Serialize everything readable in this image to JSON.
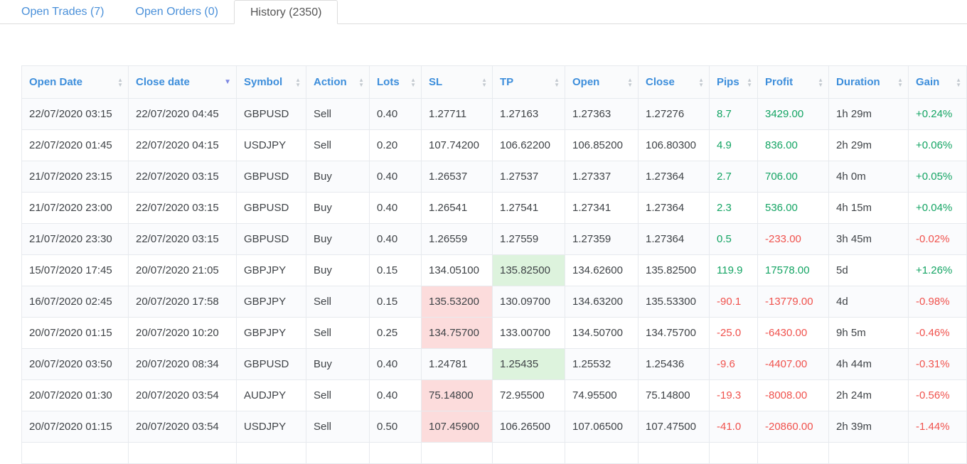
{
  "tabs": [
    {
      "id": "open-trades",
      "label": "Open Trades (7)",
      "active": false
    },
    {
      "id": "open-orders",
      "label": "Open Orders (0)",
      "active": false
    },
    {
      "id": "history",
      "label": "History (2350)",
      "active": true
    }
  ],
  "colors": {
    "positive": "#13a463",
    "negative": "#f0524d",
    "sl_hit_bg": "#fcdcdc",
    "tp_hit_bg": "#ddf3dd",
    "header_text": "#3d8edb",
    "tab_link": "#4a90d9",
    "active_sort_arrow": "#7d88e2"
  },
  "table": {
    "columns": [
      {
        "key": "open_date",
        "label": "Open Date",
        "sort": "none"
      },
      {
        "key": "close_date",
        "label": "Close date",
        "sort": "desc"
      },
      {
        "key": "symbol",
        "label": "Symbol",
        "sort": "none"
      },
      {
        "key": "action",
        "label": "Action",
        "sort": "none"
      },
      {
        "key": "lots",
        "label": "Lots",
        "sort": "none"
      },
      {
        "key": "sl",
        "label": "SL",
        "sort": "none"
      },
      {
        "key": "tp",
        "label": "TP",
        "sort": "none"
      },
      {
        "key": "open",
        "label": "Open",
        "sort": "none"
      },
      {
        "key": "close",
        "label": "Close",
        "sort": "none"
      },
      {
        "key": "pips",
        "label": "Pips",
        "sort": "none"
      },
      {
        "key": "profit",
        "label": "Profit",
        "sort": "none"
      },
      {
        "key": "duration",
        "label": "Duration",
        "sort": "none"
      },
      {
        "key": "gain",
        "label": "Gain",
        "sort": "none"
      }
    ],
    "rows": [
      {
        "open_date": "22/07/2020 03:15",
        "close_date": "22/07/2020 04:45",
        "symbol": "GBPUSD",
        "action": "Sell",
        "lots": "0.40",
        "sl": "1.27711",
        "sl_hit": false,
        "tp": "1.27163",
        "tp_hit": false,
        "open": "1.27363",
        "close": "1.27276",
        "pips": "8.7",
        "profit": "3429.00",
        "duration": "1h 29m",
        "gain": "+0.24%"
      },
      {
        "open_date": "22/07/2020 01:45",
        "close_date": "22/07/2020 04:15",
        "symbol": "USDJPY",
        "action": "Sell",
        "lots": "0.20",
        "sl": "107.74200",
        "sl_hit": false,
        "tp": "106.62200",
        "tp_hit": false,
        "open": "106.85200",
        "close": "106.80300",
        "pips": "4.9",
        "profit": "836.00",
        "duration": "2h 29m",
        "gain": "+0.06%"
      },
      {
        "open_date": "21/07/2020 23:15",
        "close_date": "22/07/2020 03:15",
        "symbol": "GBPUSD",
        "action": "Buy",
        "lots": "0.40",
        "sl": "1.26537",
        "sl_hit": false,
        "tp": "1.27537",
        "tp_hit": false,
        "open": "1.27337",
        "close": "1.27364",
        "pips": "2.7",
        "profit": "706.00",
        "duration": "4h 0m",
        "gain": "+0.05%"
      },
      {
        "open_date": "21/07/2020 23:00",
        "close_date": "22/07/2020 03:15",
        "symbol": "GBPUSD",
        "action": "Buy",
        "lots": "0.40",
        "sl": "1.26541",
        "sl_hit": false,
        "tp": "1.27541",
        "tp_hit": false,
        "open": "1.27341",
        "close": "1.27364",
        "pips": "2.3",
        "profit": "536.00",
        "duration": "4h 15m",
        "gain": "+0.04%"
      },
      {
        "open_date": "21/07/2020 23:30",
        "close_date": "22/07/2020 03:15",
        "symbol": "GBPUSD",
        "action": "Buy",
        "lots": "0.40",
        "sl": "1.26559",
        "sl_hit": false,
        "tp": "1.27559",
        "tp_hit": false,
        "open": "1.27359",
        "close": "1.27364",
        "pips": "0.5",
        "profit": "-233.00",
        "duration": "3h 45m",
        "gain": "-0.02%"
      },
      {
        "open_date": "15/07/2020 17:45",
        "close_date": "20/07/2020 21:05",
        "symbol": "GBPJPY",
        "action": "Buy",
        "lots": "0.15",
        "sl": "134.05100",
        "sl_hit": false,
        "tp": "135.82500",
        "tp_hit": true,
        "open": "134.62600",
        "close": "135.82500",
        "pips": "119.9",
        "profit": "17578.00",
        "duration": "5d",
        "gain": "+1.26%"
      },
      {
        "open_date": "16/07/2020 02:45",
        "close_date": "20/07/2020 17:58",
        "symbol": "GBPJPY",
        "action": "Sell",
        "lots": "0.15",
        "sl": "135.53200",
        "sl_hit": true,
        "tp": "130.09700",
        "tp_hit": false,
        "open": "134.63200",
        "close": "135.53300",
        "pips": "-90.1",
        "profit": "-13779.00",
        "duration": "4d",
        "gain": "-0.98%"
      },
      {
        "open_date": "20/07/2020 01:15",
        "close_date": "20/07/2020 10:20",
        "symbol": "GBPJPY",
        "action": "Sell",
        "lots": "0.25",
        "sl": "134.75700",
        "sl_hit": true,
        "tp": "133.00700",
        "tp_hit": false,
        "open": "134.50700",
        "close": "134.75700",
        "pips": "-25.0",
        "profit": "-6430.00",
        "duration": "9h 5m",
        "gain": "-0.46%"
      },
      {
        "open_date": "20/07/2020 03:50",
        "close_date": "20/07/2020 08:34",
        "symbol": "GBPUSD",
        "action": "Buy",
        "lots": "0.40",
        "sl": "1.24781",
        "sl_hit": false,
        "tp": "1.25435",
        "tp_hit": true,
        "open": "1.25532",
        "close": "1.25436",
        "pips": "-9.6",
        "profit": "-4407.00",
        "duration": "4h 44m",
        "gain": "-0.31%"
      },
      {
        "open_date": "20/07/2020 01:30",
        "close_date": "20/07/2020 03:54",
        "symbol": "AUDJPY",
        "action": "Sell",
        "lots": "0.40",
        "sl": "75.14800",
        "sl_hit": true,
        "tp": "72.95500",
        "tp_hit": false,
        "open": "74.95500",
        "close": "75.14800",
        "pips": "-19.3",
        "profit": "-8008.00",
        "duration": "2h 24m",
        "gain": "-0.56%"
      },
      {
        "open_date": "20/07/2020 01:15",
        "close_date": "20/07/2020 03:54",
        "symbol": "USDJPY",
        "action": "Sell",
        "lots": "0.50",
        "sl": "107.45900",
        "sl_hit": true,
        "tp": "106.26500",
        "tp_hit": false,
        "open": "107.06500",
        "close": "107.47500",
        "pips": "-41.0",
        "profit": "-20860.00",
        "duration": "2h 39m",
        "gain": "-1.44%"
      }
    ]
  }
}
